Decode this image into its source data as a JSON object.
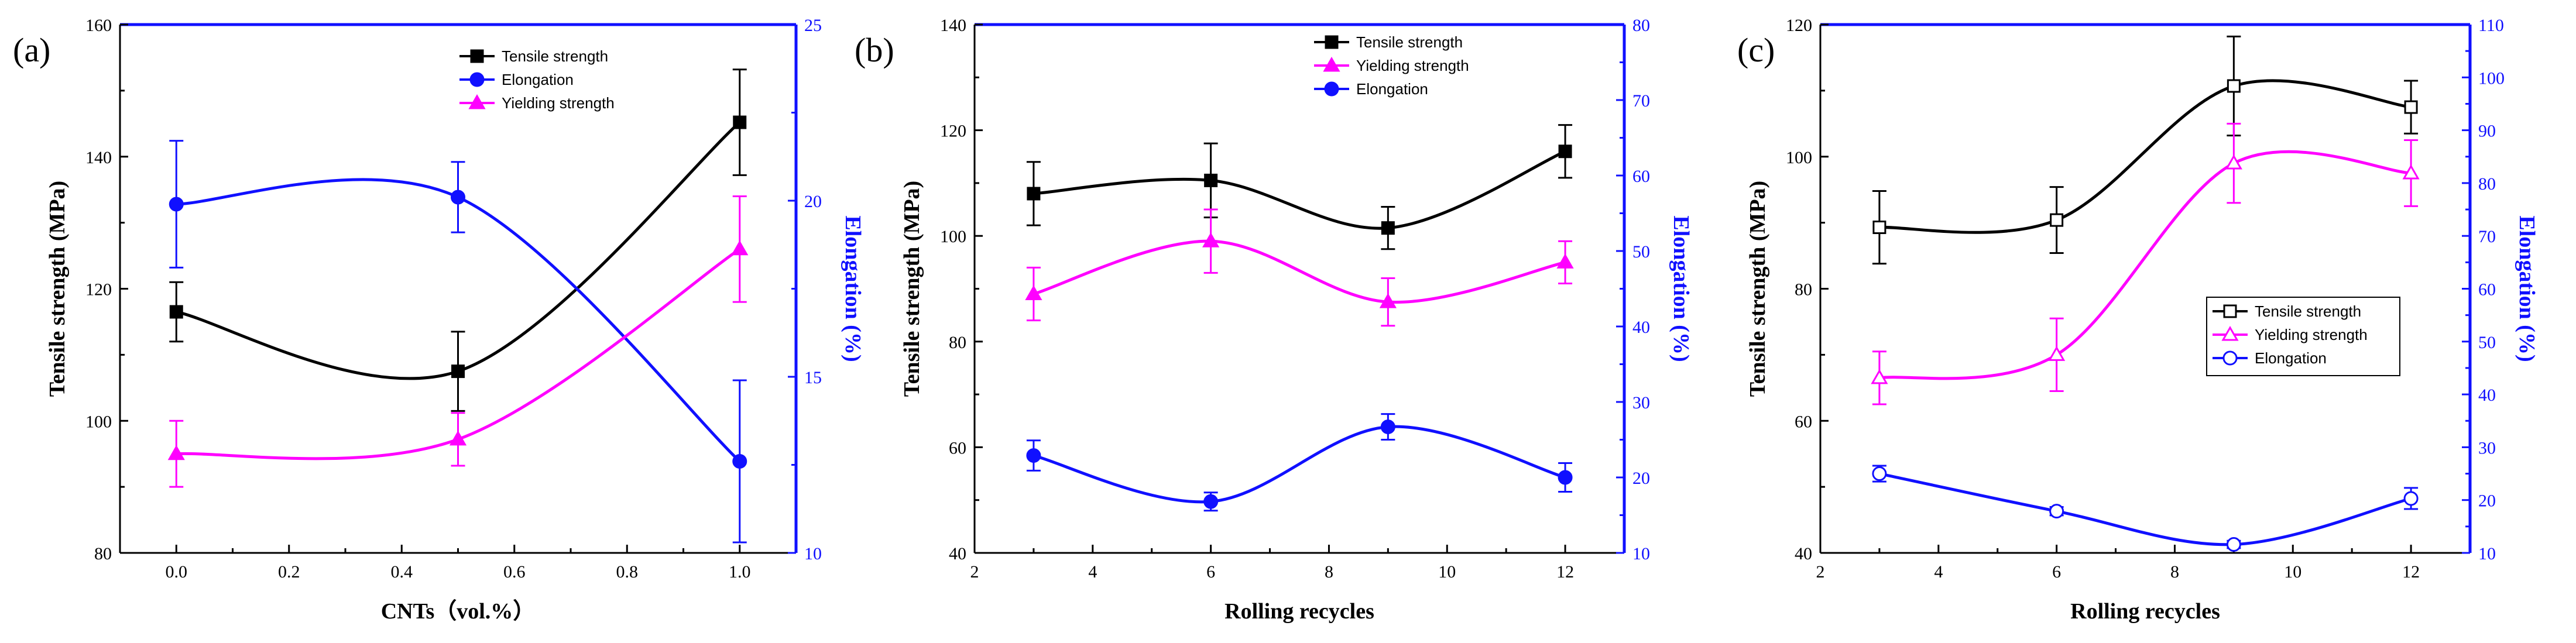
{
  "chart_data": [
    {
      "panel_label": "(a)",
      "type": "line",
      "xlabel": "CNTs（vol.%）",
      "ylabel": "Tensile strength (MPa)",
      "y2label": "Elongation (%)",
      "xlim": [
        -0.1,
        1.1
      ],
      "xticks": [
        0.0,
        0.2,
        0.4,
        0.6,
        0.8,
        1.0
      ],
      "xtick_labels": [
        "0.0",
        "0.2",
        "0.4",
        "0.6",
        "0.8",
        "1.0"
      ],
      "ylim": [
        80,
        160
      ],
      "yticks": [
        80,
        100,
        120,
        140,
        160
      ],
      "y2lim": [
        10,
        25
      ],
      "y2ticks": [
        10,
        15,
        20,
        25
      ],
      "x": [
        0.0,
        0.5,
        1.0
      ],
      "series": [
        {
          "name": "Tensile strength",
          "axis": "left",
          "color": "#000000",
          "marker": "square",
          "filled": true,
          "values": [
            116.5,
            107.5,
            145.2
          ],
          "errors": [
            4.5,
            6.0,
            8.0
          ]
        },
        {
          "name": "Elongation",
          "axis": "right",
          "color": "#1010ff",
          "marker": "circle",
          "filled": true,
          "values": [
            19.9,
            20.1,
            12.6
          ],
          "errors": [
            1.8,
            1.0,
            2.3
          ]
        },
        {
          "name": "Yielding strength",
          "axis": "left",
          "color": "#ff00ff",
          "marker": "triangle",
          "filled": true,
          "values": [
            95.0,
            97.2,
            126.0
          ],
          "errors": [
            5.0,
            4.0,
            8.0
          ]
        }
      ],
      "legend_position": "top-right"
    },
    {
      "panel_label": "(b)",
      "type": "line",
      "xlabel": "Rolling recycles",
      "ylabel": "Tensile strength (MPa)",
      "y2label": "Elongation (%)",
      "xlim": [
        2,
        13
      ],
      "xticks": [
        2,
        4,
        6,
        8,
        10,
        12
      ],
      "xtick_labels": [
        "2",
        "4",
        "6",
        "8",
        "10",
        "12"
      ],
      "ylim": [
        40,
        140
      ],
      "yticks": [
        40,
        60,
        80,
        100,
        120,
        140
      ],
      "y2lim": [
        10,
        80
      ],
      "y2ticks": [
        10,
        20,
        30,
        40,
        50,
        60,
        70,
        80
      ],
      "x": [
        3,
        6,
        9,
        12
      ],
      "series": [
        {
          "name": "Tensile strength",
          "axis": "left",
          "color": "#000000",
          "marker": "square",
          "filled": true,
          "values": [
            108.0,
            110.5,
            101.5,
            116.0
          ],
          "errors": [
            6.0,
            7.0,
            4.0,
            5.0
          ]
        },
        {
          "name": "Yielding strength",
          "axis": "left",
          "color": "#ff00ff",
          "marker": "triangle",
          "filled": true,
          "values": [
            89.0,
            99.0,
            87.5,
            95.0
          ],
          "errors": [
            5.0,
            6.0,
            4.5,
            4.0
          ]
        },
        {
          "name": "Elongation",
          "axis": "right",
          "color": "#1010ff",
          "marker": "circle",
          "filled": true,
          "values": [
            22.9,
            16.8,
            26.7,
            20.0
          ],
          "errors": [
            2.0,
            1.2,
            1.7,
            1.9
          ]
        }
      ],
      "legend_position": "top-right"
    },
    {
      "panel_label": "(c)",
      "type": "line",
      "xlabel": "Rolling recycles",
      "ylabel": "Tensile strength (MPa)",
      "y2label": "Elongation (%)",
      "xlim": [
        2,
        13
      ],
      "xticks": [
        2,
        4,
        6,
        8,
        10,
        12
      ],
      "xtick_labels": [
        "2",
        "4",
        "6",
        "8",
        "10",
        "12"
      ],
      "ylim": [
        40,
        120
      ],
      "yticks": [
        40,
        60,
        80,
        100,
        120
      ],
      "y2lim": [
        10,
        110
      ],
      "y2ticks": [
        10,
        20,
        30,
        40,
        50,
        60,
        70,
        80,
        90,
        100,
        110
      ],
      "x": [
        3,
        6,
        9,
        12
      ],
      "series": [
        {
          "name": "Tensile strength",
          "axis": "left",
          "color": "#000000",
          "marker": "square",
          "filled": false,
          "values": [
            89.3,
            90.4,
            110.7,
            107.5
          ],
          "errors": [
            5.5,
            5.0,
            7.5,
            4.0
          ]
        },
        {
          "name": "Yielding strength",
          "axis": "left",
          "color": "#ff00ff",
          "marker": "triangle",
          "filled": false,
          "values": [
            66.5,
            70.0,
            99.0,
            97.5
          ],
          "errors": [
            4.0,
            5.5,
            6.0,
            5.0
          ]
        },
        {
          "name": "Elongation",
          "axis": "right",
          "color": "#1010ff",
          "marker": "circle",
          "filled": false,
          "values": [
            25.0,
            17.9,
            11.6,
            20.3
          ],
          "errors": [
            1.5,
            0.8,
            0.7,
            2.0
          ]
        }
      ],
      "legend_position": "center-right"
    }
  ]
}
